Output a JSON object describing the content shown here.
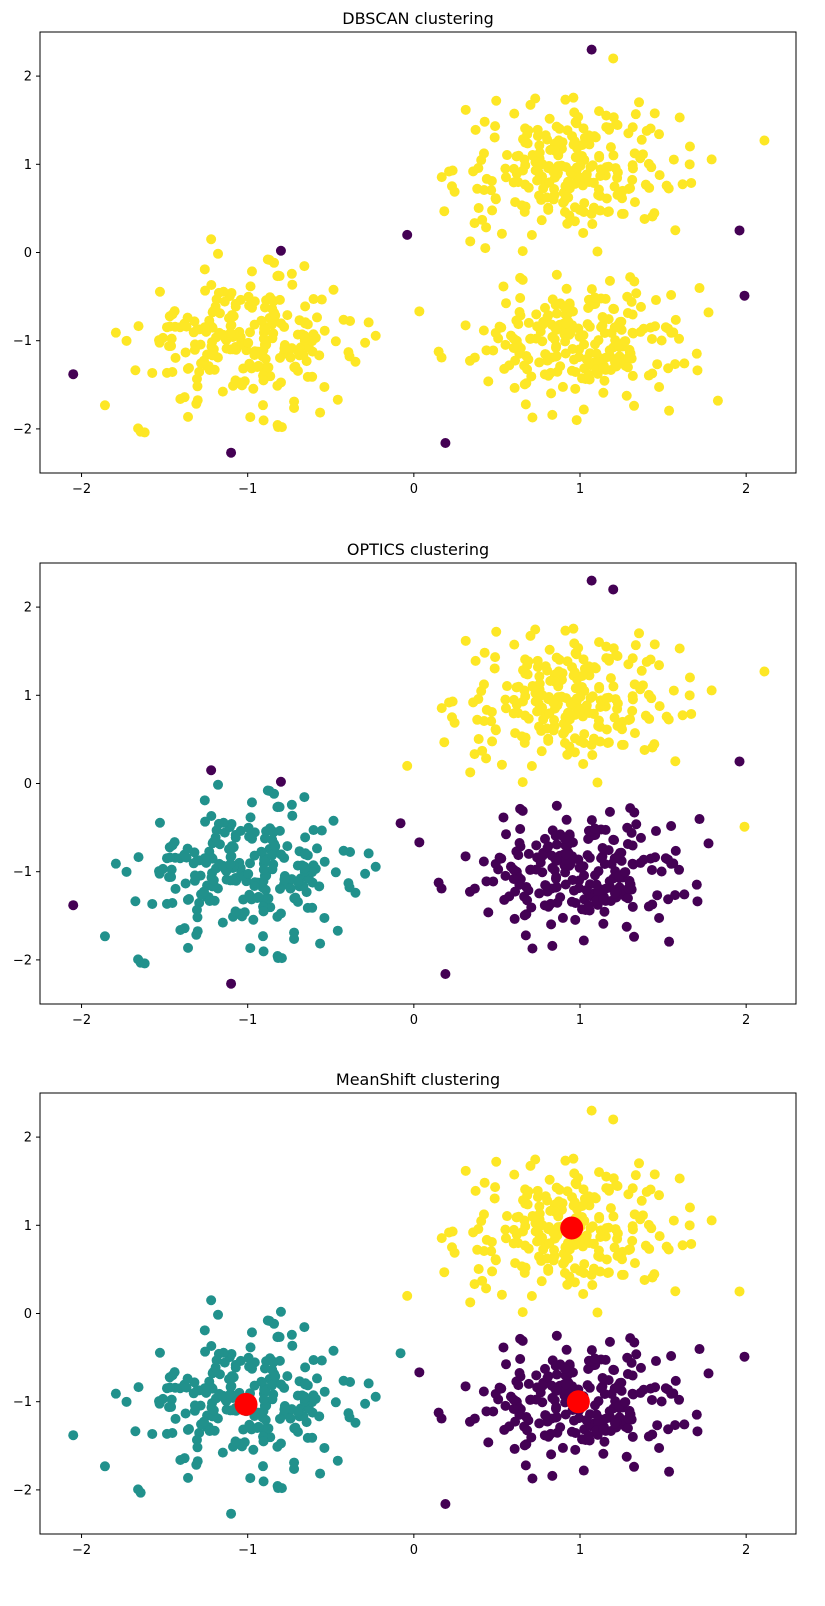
{
  "chart_data": [
    {
      "type": "scatter",
      "title": "DBSCAN clustering",
      "xlim": [
        -2.25,
        2.3
      ],
      "ylim": [
        -2.5,
        2.5
      ],
      "xticks": [
        -2,
        -1,
        0,
        1,
        2
      ],
      "yticks": [
        -2,
        -1,
        0,
        1,
        2
      ],
      "xtick_labels": [
        "−2",
        "−1",
        "0",
        "1",
        "2"
      ],
      "ytick_labels": [
        "−2",
        "−1",
        "0",
        "1",
        "2"
      ],
      "colormap": {
        "noise": "#440154",
        "cluster_0": "#fde725"
      },
      "cluster_summary": [
        {
          "label": "cluster_0",
          "color": "#fde725",
          "centers": [
            [
              -1.0,
              -1.0
            ],
            [
              0.95,
              0.95
            ],
            [
              1.0,
              -1.0
            ]
          ]
        }
      ],
      "points": [
        {
          "x": 1.07,
          "y": 2.3,
          "c": "#440154"
        },
        {
          "x": -0.8,
          "y": 0.02,
          "c": "#440154"
        },
        {
          "x": -0.04,
          "y": 0.2,
          "c": "#440154"
        },
        {
          "x": 1.96,
          "y": 0.25,
          "c": "#440154"
        },
        {
          "x": 1.99,
          "y": -0.49,
          "c": "#440154"
        },
        {
          "x": -2.05,
          "y": -1.38,
          "c": "#440154"
        },
        {
          "x": -1.1,
          "y": -2.27,
          "c": "#440154"
        },
        {
          "x": 0.19,
          "y": -2.16,
          "c": "#440154"
        },
        {
          "x": 1.2,
          "y": 2.2,
          "c": "#fde725"
        },
        {
          "x": -1.22,
          "y": 0.15,
          "c": "#fde725"
        },
        {
          "x": 2.11,
          "y": 1.27,
          "c": "#fde725"
        },
        {
          "x": -1.62,
          "y": -2.04,
          "c": "#fde725"
        },
        {
          "x": 0.43,
          "y": 0.05,
          "c": "#fde725"
        },
        {
          "x": 1.83,
          "y": -1.68,
          "c": "#fde725"
        },
        {
          "x": 0.98,
          "y": -1.9,
          "c": "#fde725"
        }
      ]
    },
    {
      "type": "scatter",
      "title": "OPTICS clustering",
      "xlim": [
        -2.25,
        2.3
      ],
      "ylim": [
        -2.5,
        2.5
      ],
      "xticks": [
        -2,
        -1,
        0,
        1,
        2
      ],
      "yticks": [
        -2,
        -1,
        0,
        1,
        2
      ],
      "xtick_labels": [
        "−2",
        "−1",
        "0",
        "1",
        "2"
      ],
      "ytick_labels": [
        "−2",
        "−1",
        "0",
        "1",
        "2"
      ],
      "colormap": {
        "noise": "#440154",
        "cluster_0": "#21918c",
        "cluster_1": "#fde725"
      },
      "cluster_summary": [
        {
          "label": "noise",
          "color": "#440154",
          "centers": [
            [
              1.0,
              -1.0
            ]
          ]
        },
        {
          "label": "cluster_0",
          "color": "#21918c",
          "centers": [
            [
              -1.0,
              -1.0
            ]
          ]
        },
        {
          "label": "cluster_1",
          "color": "#fde725",
          "centers": [
            [
              0.95,
              0.95
            ]
          ]
        }
      ],
      "points": [
        {
          "x": 1.07,
          "y": 2.3,
          "c": "#440154"
        },
        {
          "x": 1.2,
          "y": 2.2,
          "c": "#440154"
        },
        {
          "x": -1.22,
          "y": 0.15,
          "c": "#440154"
        },
        {
          "x": -0.8,
          "y": 0.02,
          "c": "#440154"
        },
        {
          "x": 1.96,
          "y": 0.25,
          "c": "#440154"
        },
        {
          "x": -2.05,
          "y": -1.38,
          "c": "#440154"
        },
        {
          "x": -1.1,
          "y": -2.27,
          "c": "#440154"
        },
        {
          "x": 0.19,
          "y": -2.16,
          "c": "#440154"
        },
        {
          "x": -0.08,
          "y": -0.45,
          "c": "#440154"
        },
        {
          "x": -0.04,
          "y": 0.2,
          "c": "#fde725"
        },
        {
          "x": 1.99,
          "y": -0.49,
          "c": "#fde725"
        },
        {
          "x": 2.11,
          "y": 1.27,
          "c": "#fde725"
        },
        {
          "x": -1.62,
          "y": -2.04,
          "c": "#21918c"
        }
      ]
    },
    {
      "type": "scatter",
      "title": "MeanShift clustering",
      "xlim": [
        -2.25,
        2.3
      ],
      "ylim": [
        -2.5,
        2.5
      ],
      "xticks": [
        -2,
        -1,
        0,
        1,
        2
      ],
      "yticks": [
        -2,
        -1,
        0,
        1,
        2
      ],
      "xtick_labels": [
        "−2",
        "−1",
        "0",
        "1",
        "2"
      ],
      "ytick_labels": [
        "−2",
        "−1",
        "0",
        "1",
        "2"
      ],
      "colormap": {
        "cluster_0": "#440154",
        "cluster_1": "#21918c",
        "cluster_2": "#fde725"
      },
      "cluster_summary": [
        {
          "label": "cluster_0",
          "color": "#440154",
          "centers": [
            [
              1.0,
              -1.0
            ]
          ]
        },
        {
          "label": "cluster_1",
          "color": "#21918c",
          "centers": [
            [
              -1.0,
              -1.0
            ]
          ]
        },
        {
          "label": "cluster_2",
          "color": "#fde725",
          "centers": [
            [
              0.95,
              0.95
            ]
          ]
        }
      ],
      "centers": [
        {
          "x": 0.95,
          "y": 0.97,
          "c": "#ff0000"
        },
        {
          "x": -1.01,
          "y": -1.03,
          "c": "#ff0000"
        },
        {
          "x": 0.99,
          "y": -1.0,
          "c": "#ff0000"
        }
      ],
      "points": [
        {
          "x": 1.07,
          "y": 2.3,
          "c": "#fde725"
        },
        {
          "x": 1.2,
          "y": 2.2,
          "c": "#fde725"
        },
        {
          "x": -0.04,
          "y": 0.2,
          "c": "#fde725"
        },
        {
          "x": 1.96,
          "y": 0.25,
          "c": "#fde725"
        },
        {
          "x": -1.22,
          "y": 0.15,
          "c": "#21918c"
        },
        {
          "x": -0.8,
          "y": 0.02,
          "c": "#21918c"
        },
        {
          "x": -2.05,
          "y": -1.38,
          "c": "#21918c"
        },
        {
          "x": -1.1,
          "y": -2.27,
          "c": "#21918c"
        },
        {
          "x": 1.99,
          "y": -0.49,
          "c": "#440154"
        },
        {
          "x": 0.19,
          "y": -2.16,
          "c": "#440154"
        },
        {
          "x": -0.08,
          "y": -0.45,
          "c": "#21918c"
        }
      ]
    }
  ]
}
